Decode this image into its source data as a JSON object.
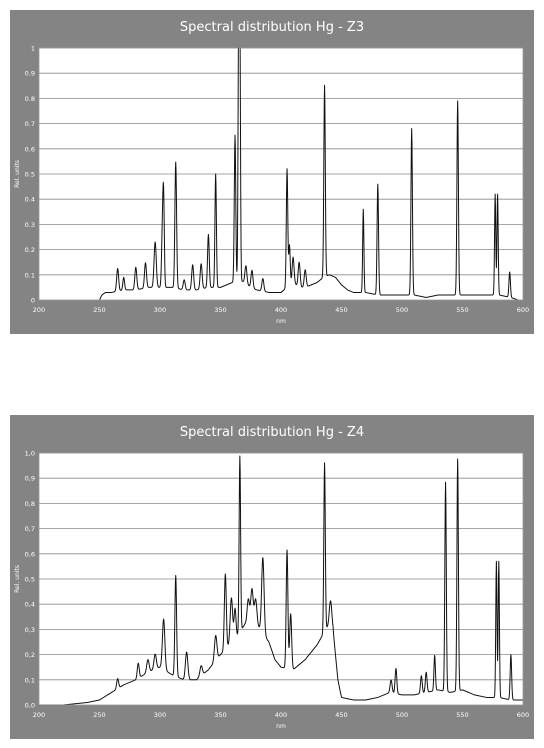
{
  "chart_data": [
    {
      "type": "line",
      "title": "Spectral distribution Hg - Z3",
      "xlabel": "nm",
      "ylabel": "Rel. units",
      "xlim": [
        200,
        600
      ],
      "ylim": [
        0,
        1
      ],
      "x_ticks": [
        "200",
        "250",
        "300",
        "350",
        "400",
        "450",
        "500",
        "550",
        "600"
      ],
      "y_ticks": [
        "0",
        "0.1",
        "0.2",
        "0.3",
        "0.4",
        "0.5",
        "0.6",
        "0.7",
        "0.8",
        "0.9",
        "1"
      ],
      "grid": true,
      "background": [
        [
          250,
          0.0
        ],
        [
          252,
          0.02
        ],
        [
          255,
          0.03
        ],
        [
          260,
          0.03
        ],
        [
          270,
          0.04
        ],
        [
          280,
          0.04
        ],
        [
          290,
          0.05
        ],
        [
          300,
          0.05
        ],
        [
          310,
          0.05
        ],
        [
          320,
          0.04
        ],
        [
          330,
          0.04
        ],
        [
          340,
          0.05
        ],
        [
          350,
          0.05
        ],
        [
          355,
          0.06
        ],
        [
          360,
          0.07
        ],
        [
          365,
          0.08
        ],
        [
          370,
          0.07
        ],
        [
          375,
          0.05
        ],
        [
          380,
          0.04
        ],
        [
          390,
          0.03
        ],
        [
          400,
          0.03
        ],
        [
          405,
          0.05
        ],
        [
          410,
          0.07
        ],
        [
          415,
          0.05
        ],
        [
          420,
          0.05
        ],
        [
          425,
          0.06
        ],
        [
          430,
          0.07
        ],
        [
          435,
          0.09
        ],
        [
          440,
          0.1
        ],
        [
          445,
          0.09
        ],
        [
          450,
          0.06
        ],
        [
          455,
          0.04
        ],
        [
          460,
          0.03
        ],
        [
          470,
          0.03
        ],
        [
          480,
          0.02
        ],
        [
          490,
          0.02
        ],
        [
          500,
          0.02
        ],
        [
          510,
          0.02
        ],
        [
          520,
          0.01
        ],
        [
          530,
          0.02
        ],
        [
          540,
          0.02
        ],
        [
          550,
          0.02
        ],
        [
          560,
          0.02
        ],
        [
          570,
          0.02
        ],
        [
          580,
          0.02
        ],
        [
          590,
          0.01
        ],
        [
          596,
          0.0
        ]
      ],
      "peaks": [
        [
          265,
          0.09,
          0.8
        ],
        [
          270,
          0.05,
          0.7
        ],
        [
          280,
          0.09,
          0.8
        ],
        [
          288,
          0.1,
          0.8
        ],
        [
          296,
          0.18,
          0.9
        ],
        [
          302,
          0.22,
          0.7
        ],
        [
          303,
          0.32,
          0.6
        ],
        [
          313,
          0.5,
          0.7
        ],
        [
          320,
          0.04,
          0.8
        ],
        [
          327,
          0.1,
          0.8
        ],
        [
          334,
          0.1,
          0.8
        ],
        [
          340,
          0.21,
          0.7
        ],
        [
          346,
          0.45,
          0.6
        ],
        [
          362,
          0.58,
          0.6
        ],
        [
          365,
          1.0,
          0.5
        ],
        [
          366,
          1.0,
          0.5
        ],
        [
          371,
          0.07,
          0.8
        ],
        [
          376,
          0.07,
          0.8
        ],
        [
          385,
          0.05,
          0.8
        ],
        [
          405,
          0.47,
          0.6
        ],
        [
          407,
          0.16,
          0.6
        ],
        [
          410,
          0.1,
          0.8
        ],
        [
          415,
          0.1,
          0.8
        ],
        [
          420,
          0.07,
          0.8
        ],
        [
          436,
          0.76,
          0.6
        ],
        [
          468,
          0.33,
          0.5
        ],
        [
          480,
          0.44,
          0.6
        ],
        [
          508,
          0.66,
          0.6
        ],
        [
          546,
          0.77,
          0.6
        ],
        [
          577,
          0.4,
          0.5
        ],
        [
          579,
          0.4,
          0.5
        ],
        [
          589,
          0.1,
          0.6
        ]
      ]
    },
    {
      "type": "line",
      "title": "Spectral distribution Hg - Z4",
      "xlabel": "nm",
      "ylabel": "Rel. units",
      "xlim": [
        200,
        600
      ],
      "ylim": [
        0,
        1
      ],
      "x_ticks": [
        "200",
        "250",
        "300",
        "350",
        "400",
        "450",
        "500",
        "550",
        "600"
      ],
      "y_ticks": [
        "0,0",
        "0,1",
        "0,2",
        "0,3",
        "0,4",
        "0,5",
        "0,6",
        "0,7",
        "0,8",
        "0,9",
        "1,0"
      ],
      "grid": true,
      "background": [
        [
          200,
          0.0
        ],
        [
          220,
          0.0
        ],
        [
          240,
          0.01
        ],
        [
          250,
          0.02
        ],
        [
          260,
          0.05
        ],
        [
          270,
          0.08
        ],
        [
          280,
          0.1
        ],
        [
          290,
          0.13
        ],
        [
          300,
          0.15
        ],
        [
          310,
          0.12
        ],
        [
          320,
          0.1
        ],
        [
          330,
          0.1
        ],
        [
          340,
          0.14
        ],
        [
          350,
          0.2
        ],
        [
          360,
          0.25
        ],
        [
          365,
          0.28
        ],
        [
          370,
          0.32
        ],
        [
          380,
          0.32
        ],
        [
          390,
          0.25
        ],
        [
          395,
          0.18
        ],
        [
          400,
          0.15
        ],
        [
          410,
          0.14
        ],
        [
          420,
          0.18
        ],
        [
          430,
          0.24
        ],
        [
          437,
          0.3
        ],
        [
          440,
          0.32
        ],
        [
          443,
          0.3
        ],
        [
          447,
          0.1
        ],
        [
          450,
          0.03
        ],
        [
          460,
          0.02
        ],
        [
          470,
          0.02
        ],
        [
          480,
          0.03
        ],
        [
          490,
          0.05
        ],
        [
          500,
          0.04
        ],
        [
          510,
          0.04
        ],
        [
          520,
          0.05
        ],
        [
          530,
          0.06
        ],
        [
          540,
          0.05
        ],
        [
          550,
          0.06
        ],
        [
          560,
          0.04
        ],
        [
          570,
          0.03
        ],
        [
          580,
          0.03
        ],
        [
          590,
          0.02
        ],
        [
          600,
          0.02
        ]
      ],
      "peaks": [
        [
          265,
          0.04,
          0.8
        ],
        [
          282,
          0.06,
          0.8
        ],
        [
          290,
          0.05,
          1.0
        ],
        [
          296,
          0.06,
          1.0
        ],
        [
          303,
          0.2,
          1.0
        ],
        [
          313,
          0.4,
          0.7
        ],
        [
          322,
          0.11,
          1.0
        ],
        [
          334,
          0.04,
          1.0
        ],
        [
          346,
          0.1,
          1.0
        ],
        [
          354,
          0.3,
          0.8
        ],
        [
          359,
          0.18,
          1.0
        ],
        [
          362,
          0.12,
          0.8
        ],
        [
          366,
          0.7,
          0.6
        ],
        [
          373,
          0.1,
          1.0
        ],
        [
          376,
          0.14,
          1.0
        ],
        [
          379,
          0.1,
          1.0
        ],
        [
          385,
          0.3,
          1.0
        ],
        [
          405,
          0.47,
          0.7
        ],
        [
          408,
          0.22,
          0.8
        ],
        [
          436,
          0.67,
          0.6
        ],
        [
          441,
          0.1,
          1.0
        ],
        [
          491,
          0.05,
          0.8
        ],
        [
          495,
          0.1,
          0.7
        ],
        [
          516,
          0.07,
          0.7
        ],
        [
          520,
          0.08,
          0.7
        ],
        [
          527,
          0.14,
          0.6
        ],
        [
          536,
          0.83,
          0.6
        ],
        [
          546,
          0.92,
          0.6
        ],
        [
          578,
          0.54,
          0.5
        ],
        [
          580,
          0.54,
          0.5
        ],
        [
          590,
          0.18,
          0.6
        ]
      ]
    }
  ]
}
